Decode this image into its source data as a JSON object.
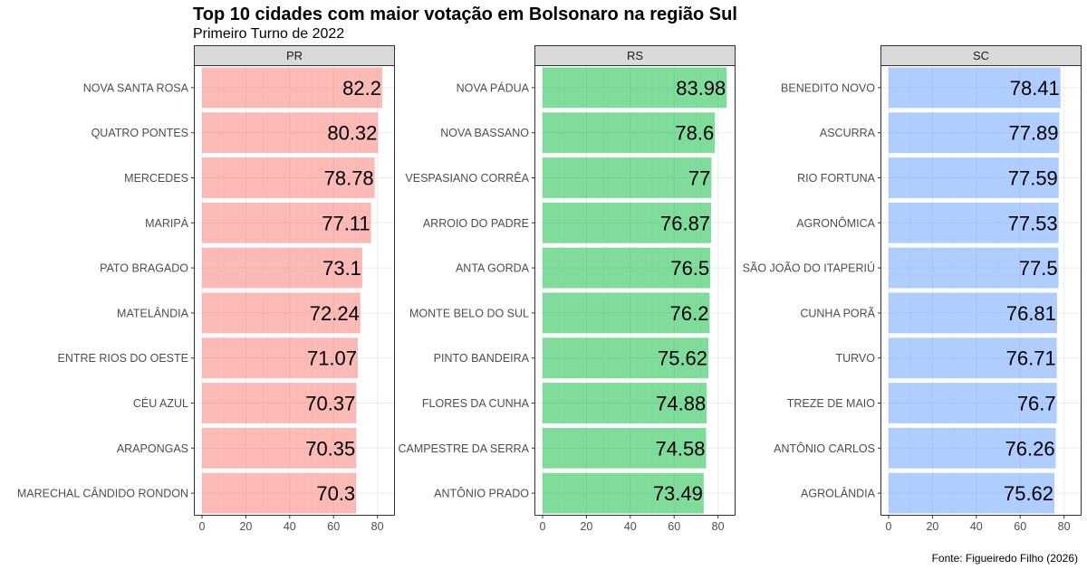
{
  "chart_data": {
    "type": "bar",
    "orientation": "horizontal",
    "title": "Top 10 cidades com maior votação em Bolsonaro na região Sul",
    "subtitle": "Primeiro Turno de 2022",
    "caption": "Fonte: Figueiredo Filho (2026)",
    "xlim": [
      0,
      88
    ],
    "x_ticks": [
      0,
      20,
      40,
      60,
      80
    ],
    "grid": true,
    "legend": "none",
    "facets": [
      {
        "name": "PR",
        "color": "#F8766D",
        "categories": [
          "NOVA SANTA ROSA",
          "QUATRO PONTES",
          "MERCEDES",
          "MARIPÁ",
          "PATO BRAGADO",
          "MATELÂNDIA",
          "ENTRE RIOS DO OESTE",
          "CÉU AZUL",
          "ARAPONGAS",
          "MARECHAL CÂNDIDO RONDON"
        ],
        "values": [
          82.2,
          80.32,
          78.78,
          77.11,
          73.1,
          72.24,
          71.07,
          70.37,
          70.35,
          70.3
        ],
        "value_labels": [
          "82.2",
          "80.32",
          "78.78",
          "77.11",
          "73.1",
          "72.24",
          "71.07",
          "70.37",
          "70.35",
          "70.3"
        ]
      },
      {
        "name": "RS",
        "color": "#00BA38",
        "categories": [
          "NOVA PÁDUA",
          "NOVA BASSANO",
          "VESPASIANO CORRÊA",
          "ARROIO DO PADRE",
          "ANTA GORDA",
          "MONTE BELO DO SUL",
          "PINTO BANDEIRA",
          "FLORES DA CUNHA",
          "CAMPESTRE DA SERRA",
          "ANTÔNIO PRADO"
        ],
        "values": [
          83.98,
          78.6,
          77,
          76.87,
          76.5,
          76.2,
          75.62,
          74.88,
          74.58,
          73.49
        ],
        "value_labels": [
          "83.98",
          "78.6",
          "77",
          "76.87",
          "76.5",
          "76.2",
          "75.62",
          "74.88",
          "74.58",
          "73.49"
        ]
      },
      {
        "name": "SC",
        "color": "#619CFF",
        "categories": [
          "BENEDITO NOVO",
          "ASCURRA",
          "RIO FORTUNA",
          "AGRONÔMICA",
          "SÃO JOÃO DO ITAPERIÚ",
          "CUNHA PORÃ",
          "TURVO",
          "TREZE DE MAIO",
          "ANTÔNIO CARLOS",
          "AGROLÂNDIA"
        ],
        "values": [
          78.41,
          77.89,
          77.59,
          77.53,
          77.5,
          76.81,
          76.71,
          76.7,
          76.26,
          75.62
        ],
        "value_labels": [
          "78.41",
          "77.89",
          "77.59",
          "77.53",
          "77.5",
          "76.81",
          "76.71",
          "76.7",
          "76.26",
          "75.62"
        ]
      }
    ]
  }
}
